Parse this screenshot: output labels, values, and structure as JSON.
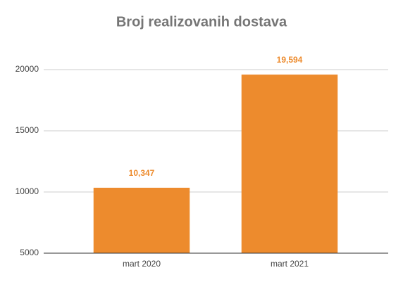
{
  "chart_data": {
    "type": "bar",
    "title": "Broj realizovanih dostava",
    "categories": [
      "mart 2020",
      "mart 2021"
    ],
    "values": [
      10347,
      19594
    ],
    "value_labels": [
      "10,347",
      "19,594"
    ],
    "color": "#ed8b2d",
    "ylim": [
      5000,
      20000
    ],
    "yticks": [
      5000,
      10000,
      15000,
      20000
    ],
    "grid": true
  }
}
